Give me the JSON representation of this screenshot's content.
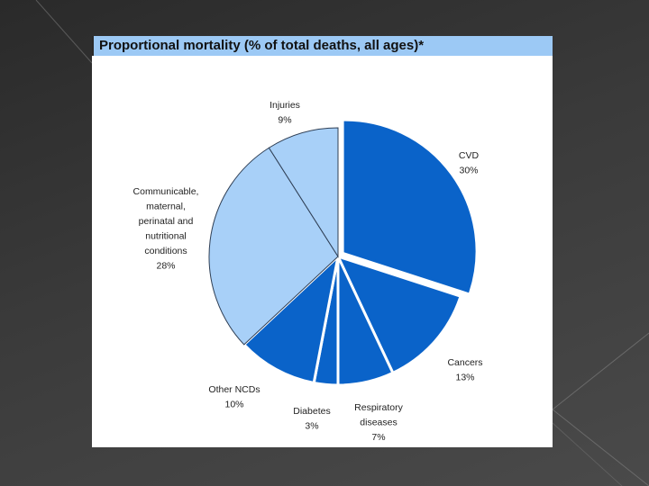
{
  "slide": {
    "background": "#333333",
    "chart_title": "Proportional mortality (% of total deaths, all ages)*"
  },
  "chart_data": {
    "type": "pie",
    "title": "Proportional mortality (% of total deaths, all ages)*",
    "start": "12 o'clock, clockwise",
    "slices": [
      {
        "label": "CVD",
        "value": 30,
        "value_label": "30%",
        "color": "#0a63c9",
        "exploded": true
      },
      {
        "label": "Cancers",
        "value": 13,
        "value_label": "13%",
        "color": "#0a63c9",
        "exploded": false
      },
      {
        "label": "Respiratory diseases",
        "label_lines": [
          "Respiratory",
          "diseases"
        ],
        "value": 7,
        "value_label": "7%",
        "color": "#0a63c9",
        "exploded": false
      },
      {
        "label": "Diabetes",
        "value": 3,
        "value_label": "3%",
        "color": "#0a63c9",
        "exploded": false
      },
      {
        "label": "Other NCDs",
        "value": 10,
        "value_label": "10%",
        "color": "#0a63c9",
        "exploded": false
      },
      {
        "label": "Communicable, maternal, perinatal and nutritional conditions",
        "label_lines": [
          "Communicable,",
          "maternal,",
          "perinatal and",
          "nutritional",
          "conditions"
        ],
        "value": 28,
        "value_label": "28%",
        "color": "#a8d0f8",
        "exploded": false
      },
      {
        "label": "Injuries",
        "value": 9,
        "value_label": "9%",
        "color": "#a8d0f8",
        "exploded": false
      }
    ]
  }
}
